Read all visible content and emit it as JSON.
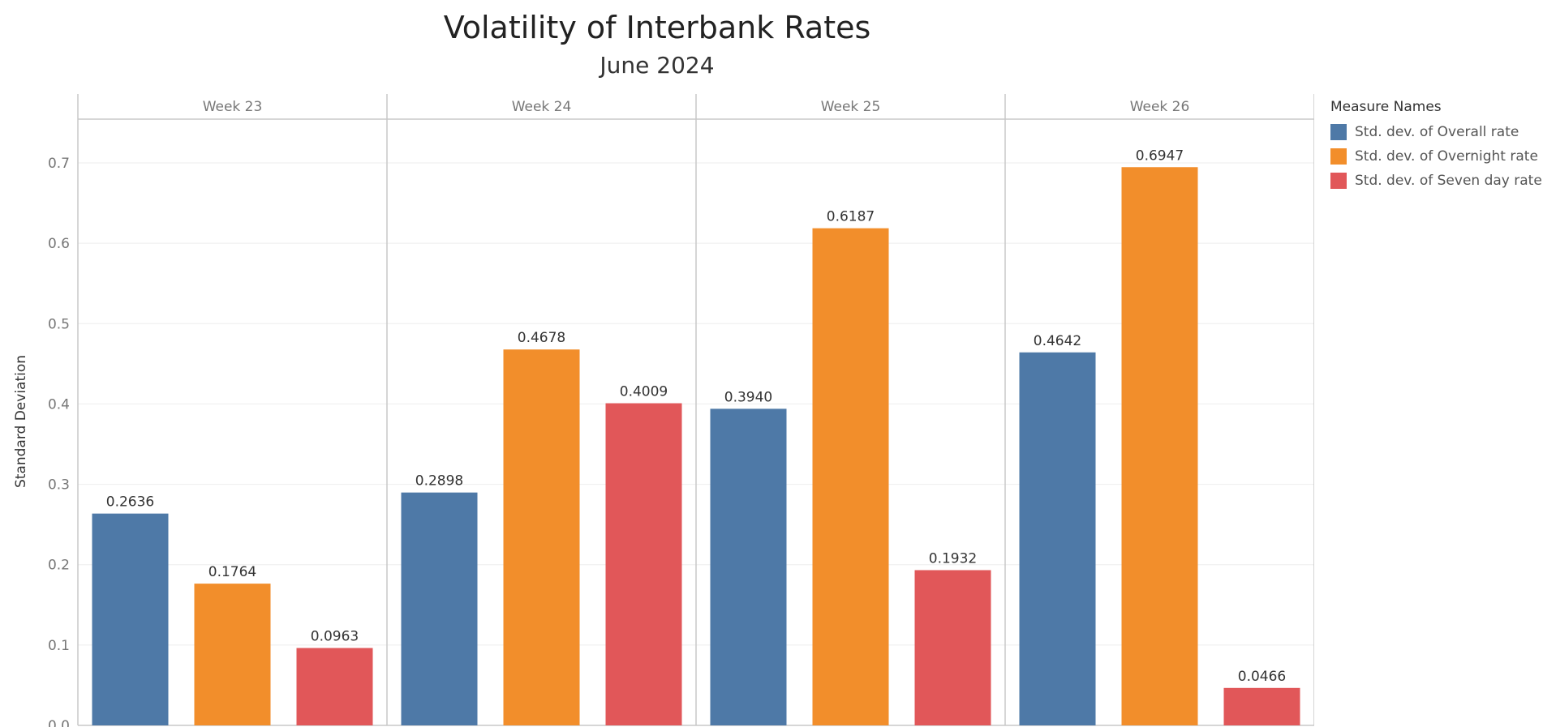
{
  "chart_data": {
    "type": "bar",
    "title": "Volatility of Interbank Rates",
    "subtitle": "June 2024",
    "ylabel": "Standard Deviation",
    "ylim": [
      0,
      0.7
    ],
    "yticks": [
      "0.0",
      "0.1",
      "0.2",
      "0.3",
      "0.4",
      "0.5",
      "0.6",
      "0.7"
    ],
    "categories": [
      "Week 23",
      "Week 24",
      "Week 25",
      "Week 26"
    ],
    "legend_title": "Measure Names",
    "legend_position": "right",
    "series": [
      {
        "name": "Std. dev. of Overall rate",
        "color": "#4e79a7",
        "values": [
          0.2636,
          0.2898,
          0.394,
          0.4642
        ],
        "labels": [
          "0.2636",
          "0.2898",
          "0.3940",
          "0.4642"
        ]
      },
      {
        "name": "Std. dev. of Overnight rate",
        "color": "#f28e2b",
        "values": [
          0.1764,
          0.4678,
          0.6187,
          0.6947
        ],
        "labels": [
          "0.1764",
          "0.4678",
          "0.6187",
          "0.6947"
        ]
      },
      {
        "name": "Std. dev. of Seven day rate",
        "color": "#e15759",
        "values": [
          0.0963,
          0.4009,
          0.1932,
          0.0466
        ],
        "labels": [
          "0.0963",
          "0.4009",
          "0.1932",
          "0.0466"
        ]
      }
    ]
  }
}
